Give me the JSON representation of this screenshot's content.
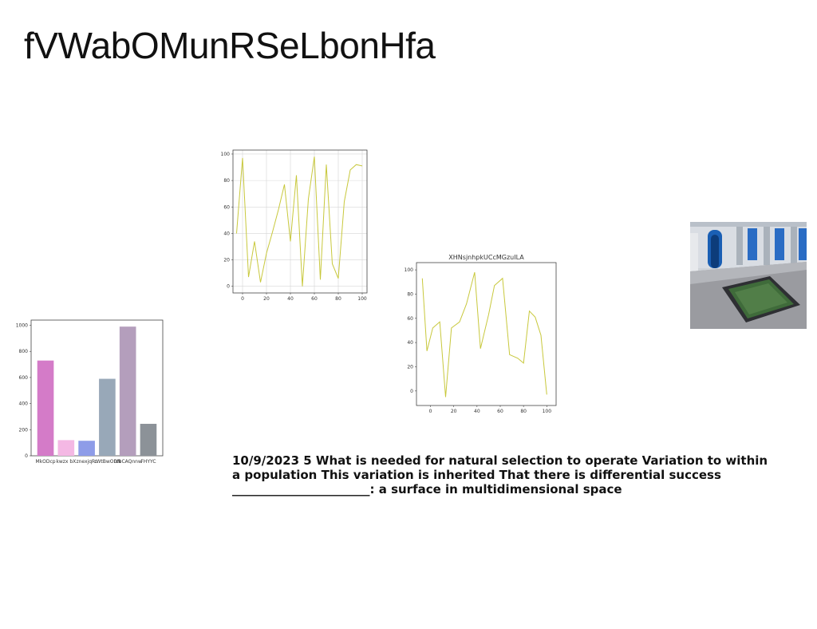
{
  "slide": {
    "title": "fVWabOMunRSeLbonHfa",
    "body_text": "10/9/2023 5 What is needed for natural selection to operate Variation to within a population This variation is inherited That there is differential success _______________________: a surface in multidimensional space"
  },
  "chart_data": [
    {
      "type": "line",
      "title": "",
      "color": "#c8c83c",
      "grid": true,
      "xlim": [
        -8,
        104
      ],
      "ylim": [
        -5,
        103
      ],
      "xticks": [
        0,
        20,
        40,
        60,
        80,
        100
      ],
      "yticks": [
        0,
        20,
        40,
        60,
        80,
        100
      ],
      "x": [
        -5,
        0,
        5,
        10,
        15,
        20,
        25,
        30,
        35,
        40,
        45,
        50,
        55,
        60,
        65,
        70,
        75,
        80,
        85,
        90,
        95,
        100
      ],
      "y": [
        40,
        97,
        7,
        34,
        3,
        25,
        41,
        58,
        77,
        34,
        84,
        0,
        66,
        98,
        5,
        92,
        17,
        6,
        64,
        88,
        92,
        91
      ]
    },
    {
      "type": "line",
      "title": "XHNsjnhpkUCcMGzuILA",
      "color": "#c8c83c",
      "grid": false,
      "xlim": [
        -12,
        108
      ],
      "ylim": [
        -12,
        106
      ],
      "xticks": [
        0,
        20,
        40,
        60,
        80,
        100
      ],
      "yticks": [
        0,
        20,
        40,
        60,
        80,
        100
      ],
      "x": [
        -7,
        -3,
        2,
        8,
        13,
        18,
        25,
        31,
        38,
        43,
        50,
        55,
        62,
        68,
        75,
        80,
        85,
        90,
        95,
        100
      ],
      "y": [
        93,
        33,
        52,
        57,
        -5,
        52,
        57,
        72,
        98,
        35,
        63,
        87,
        93,
        30,
        27,
        23,
        66,
        61,
        46,
        -3
      ]
    },
    {
      "type": "bar",
      "title": "",
      "grid": false,
      "ylim": [
        0,
        1040
      ],
      "yticks": [
        0,
        200,
        400,
        600,
        800,
        1000
      ],
      "categories": [
        "MkODcp",
        "kwzx bX",
        "znexjqFc",
        "cWtBwODN",
        "rdbCAQnnw",
        "FHYYC"
      ],
      "values": [
        730,
        120,
        115,
        590,
        990,
        245
      ],
      "colors": [
        "#d47bc8",
        "#f4b8e4",
        "#8e9ce8",
        "#98a8b8",
        "#b49ebc",
        "#8c9298"
      ]
    }
  ],
  "photo": {
    "icon": "courtyard-photo",
    "colors": {
      "sky": "#dfe6ee",
      "wall": "#c9ced6",
      "blue": "#1a5fb4",
      "floor": "#8e8f93",
      "water": "#3f6b3a"
    }
  }
}
